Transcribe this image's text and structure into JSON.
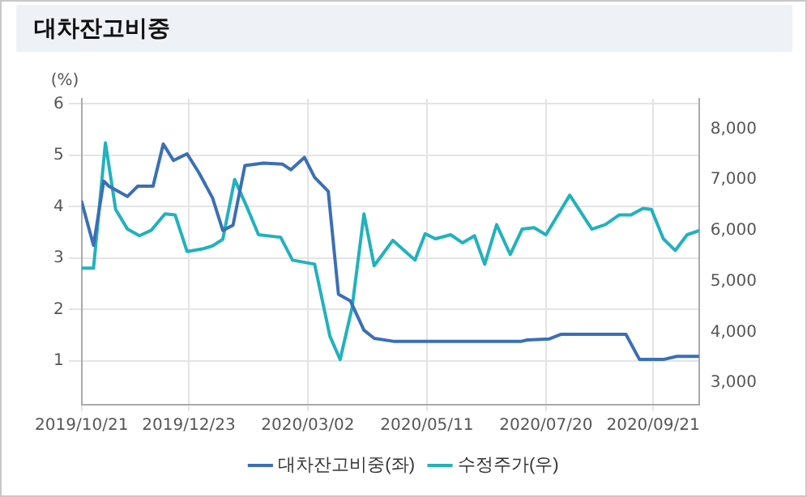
{
  "chart_data": {
    "type": "line",
    "title": "대차잔고비중",
    "ylabel": "(%)",
    "xlim": [
      "2019-10-21",
      "2020-10-18"
    ],
    "xticks": [
      {
        "value": "2019-10-21",
        "label": "2019/10/21"
      },
      {
        "value": "2019-12-23",
        "label": "2019/12/23"
      },
      {
        "value": "2020-03-02",
        "label": "2020/03/02"
      },
      {
        "value": "2020-05-11",
        "label": "2020/05/11"
      },
      {
        "value": "2020-07-20",
        "label": "2020/07/20"
      },
      {
        "value": "2020-09-21",
        "label": "2020/09/21"
      }
    ],
    "ylim": [
      0.15,
      6.1
    ],
    "yticks": [
      1,
      2,
      3,
      4,
      5,
      6
    ],
    "y2lim": [
      2570,
      8600
    ],
    "y2ticks": [
      {
        "value": 3000,
        "label": "3,000"
      },
      {
        "value": 4000,
        "label": "4,000"
      },
      {
        "value": 5000,
        "label": "5,000"
      },
      {
        "value": 6000,
        "label": "6,000"
      },
      {
        "value": 7000,
        "label": "7,000"
      },
      {
        "value": 8000,
        "label": "8,000"
      }
    ],
    "grid": true,
    "legend": "bottom",
    "marker": "none",
    "line_style": "solid",
    "series": [
      {
        "name": "대차잔고비중(좌)",
        "color": "#3b6fb6",
        "x": [
          "2019-10-21",
          "2019-10-28",
          "2019-11-03",
          "2019-11-06",
          "2019-11-17",
          "2019-11-23",
          "2019-12-02",
          "2019-12-08",
          "2019-12-14",
          "2019-12-22",
          "2019-12-29",
          "2020-01-06",
          "2020-01-12",
          "2020-01-18",
          "2020-01-25",
          "2020-02-05",
          "2020-02-16",
          "2020-02-21",
          "2020-02-29",
          "2020-03-06",
          "2020-03-14",
          "2020-03-20",
          "2020-03-27",
          "2020-04-04",
          "2020-04-10",
          "2020-04-22",
          "2020-07-05",
          "2020-07-09",
          "2020-07-22",
          "2020-07-29",
          "2020-09-05",
          "2020-09-13",
          "2020-09-27",
          "2020-10-05",
          "2020-10-18"
        ],
        "values": [
          4.1,
          3.25,
          4.5,
          4.4,
          4.2,
          4.4,
          4.4,
          5.22,
          4.9,
          5.03,
          4.66,
          4.17,
          3.54,
          3.64,
          4.8,
          4.85,
          4.83,
          4.72,
          4.96,
          4.57,
          4.3,
          2.3,
          2.17,
          1.6,
          1.44,
          1.38,
          1.38,
          1.41,
          1.43,
          1.52,
          1.52,
          1.03,
          1.03,
          1.09,
          1.09
        ]
      },
      {
        "name": "수정주가(우)",
        "color": "#21b2bd",
        "axis": "y2",
        "x": [
          "2019-10-21",
          "2019-10-28",
          "2019-11-04",
          "2019-11-10",
          "2019-11-17",
          "2019-11-24",
          "2019-12-01",
          "2019-12-09",
          "2019-12-15",
          "2019-12-22",
          "2019-12-31",
          "2020-01-06",
          "2020-01-12",
          "2020-01-19",
          "2020-01-26",
          "2020-02-02",
          "2020-02-15",
          "2020-02-22",
          "2020-03-06",
          "2020-03-15",
          "2020-03-21",
          "2020-03-28",
          "2020-04-04",
          "2020-04-10",
          "2020-04-21",
          "2020-05-04",
          "2020-05-10",
          "2020-05-16",
          "2020-05-25",
          "2020-06-01",
          "2020-06-08",
          "2020-06-14",
          "2020-06-21",
          "2020-06-29",
          "2020-07-06",
          "2020-07-13",
          "2020-07-20",
          "2020-08-03",
          "2020-08-16",
          "2020-08-24",
          "2020-09-01",
          "2020-09-08",
          "2020-09-15",
          "2020-09-20",
          "2020-09-27",
          "2020-10-04",
          "2020-10-11",
          "2020-10-18"
        ],
        "values": [
          5260,
          5260,
          7730,
          6420,
          6030,
          5900,
          6010,
          6330,
          6310,
          5590,
          5640,
          5700,
          5830,
          7010,
          6480,
          5920,
          5870,
          5420,
          5340,
          3920,
          3460,
          4480,
          6330,
          5310,
          5810,
          5420,
          5940,
          5840,
          5920,
          5760,
          5900,
          5340,
          6120,
          5530,
          6030,
          6060,
          5920,
          6700,
          6030,
          6120,
          6310,
          6310,
          6440,
          6420,
          5840,
          5610,
          5920,
          6000
        ]
      }
    ]
  }
}
